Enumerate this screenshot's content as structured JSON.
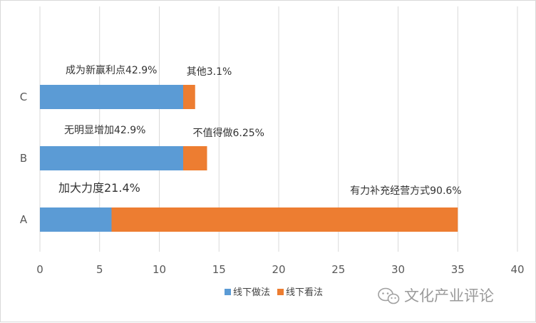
{
  "chart_data": {
    "type": "bar",
    "orientation": "horizontal",
    "stacked": true,
    "categories": [
      "A",
      "B",
      "C"
    ],
    "series": [
      {
        "name": "线下做法",
        "color": "#5B9BD5",
        "values": [
          6,
          12,
          12
        ]
      },
      {
        "name": "线下看法",
        "color": "#ED7D31",
        "values": [
          29,
          2,
          1
        ]
      }
    ],
    "xlim": [
      0,
      40
    ],
    "xticks": [
      0,
      5,
      10,
      15,
      20,
      25,
      30,
      35,
      40
    ],
    "grid": "vertical",
    "legend_position": "bottom",
    "annotations": [
      {
        "category": "A",
        "series": "线下做法",
        "text": "加大力度21.4%"
      },
      {
        "category": "A",
        "series": "线下看法",
        "text": "有力补充经营方式90.6%"
      },
      {
        "category": "B",
        "series": "线下做法",
        "text": "无明显增加42.9%"
      },
      {
        "category": "B",
        "series": "线下看法",
        "text": "不值得做6.25%"
      },
      {
        "category": "C",
        "series": "线下做法",
        "text": "成为新赢利点42.9%"
      },
      {
        "category": "C",
        "series": "线下看法",
        "text": "其他3.1%"
      }
    ]
  },
  "watermark": {
    "text": "文化产业评论",
    "icon": "wechat-icon"
  }
}
